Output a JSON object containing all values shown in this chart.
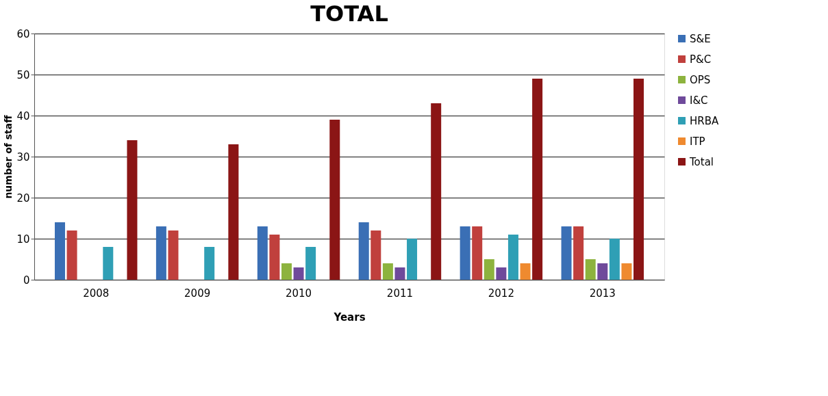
{
  "chart_data": {
    "type": "bar",
    "title": "TOTAL",
    "xlabel": "Years",
    "ylabel": "number of staff",
    "categories": [
      "2008",
      "2009",
      "2010",
      "2011",
      "2012",
      "2013"
    ],
    "series": [
      {
        "name": "S&E",
        "color": "#3a6fb5",
        "values": [
          14,
          13,
          13,
          14,
          13,
          13
        ]
      },
      {
        "name": "P&C",
        "color": "#c0403d",
        "values": [
          12,
          12,
          11,
          12,
          13,
          13
        ]
      },
      {
        "name": "OPS",
        "color": "#8db33e",
        "values": [
          null,
          null,
          4,
          4,
          5,
          5
        ]
      },
      {
        "name": "I&C",
        "color": "#6f4a9b",
        "values": [
          null,
          null,
          3,
          3,
          3,
          4
        ]
      },
      {
        "name": "HRBA",
        "color": "#2f9fb5",
        "values": [
          8,
          8,
          8,
          10,
          11,
          10
        ]
      },
      {
        "name": "ITP",
        "color": "#ef8a2f",
        "values": [
          null,
          null,
          null,
          null,
          4,
          4
        ]
      },
      {
        "name": "Total",
        "color": "#8b1515",
        "values": [
          34,
          33,
          39,
          43,
          49,
          49
        ]
      }
    ],
    "ylim": [
      0,
      60
    ],
    "yticks": [
      0,
      10,
      20,
      30,
      40,
      50,
      60
    ],
    "grid": "y",
    "legend": "right"
  }
}
